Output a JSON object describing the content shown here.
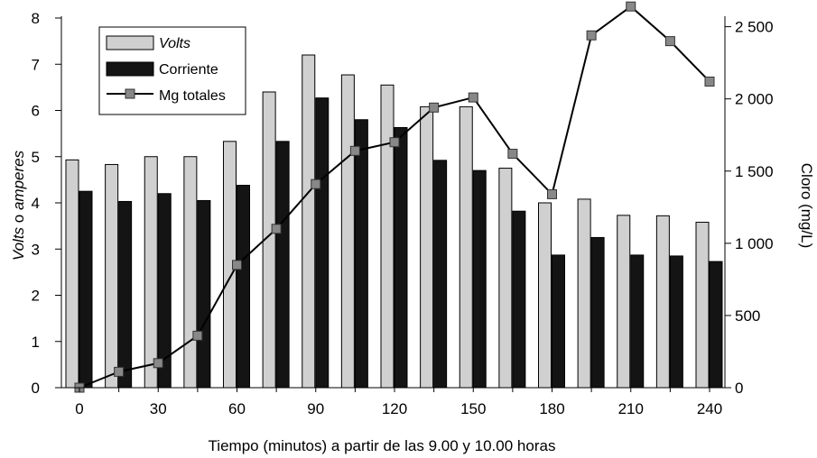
{
  "chart_data": {
    "type": "bar",
    "x": [
      0,
      15,
      30,
      45,
      60,
      75,
      90,
      105,
      120,
      135,
      150,
      165,
      180,
      195,
      210,
      225,
      240
    ],
    "series": [
      {
        "name": "Volts",
        "type": "bar",
        "axis": "left",
        "values": [
          4.93,
          4.83,
          5.0,
          5.0,
          5.33,
          6.4,
          7.2,
          6.77,
          6.55,
          6.08,
          6.08,
          4.75,
          4.0,
          4.08,
          3.73,
          3.72,
          3.58
        ]
      },
      {
        "name": "Corriente",
        "type": "bar",
        "axis": "left",
        "values": [
          4.25,
          4.03,
          4.2,
          4.05,
          4.38,
          5.33,
          6.27,
          5.8,
          5.63,
          4.92,
          4.7,
          3.82,
          2.87,
          3.25,
          2.87,
          2.85,
          2.73
        ]
      },
      {
        "name": "Mg totales",
        "type": "line",
        "axis": "right",
        "values": [
          0,
          110,
          170,
          360,
          850,
          1100,
          1410,
          1640,
          1700,
          1940,
          2010,
          1620,
          1340,
          2440,
          2640,
          2400,
          2120
        ]
      }
    ],
    "xlabel": "Tiempo (minutos) a partir de las 9.00 y 10.00 horas",
    "ylabel_parts": [
      "Volts",
      " o ",
      "amperes"
    ],
    "ylabel_right": "Cloro (mg/L)",
    "xticks": [
      "0",
      "30",
      "60",
      "90",
      "120",
      "150",
      "180",
      "210",
      "240"
    ],
    "yticks_left": [
      "0",
      "1",
      "2",
      "3",
      "4",
      "5",
      "6",
      "7",
      "8"
    ],
    "yticks_right": [
      "0",
      "500",
      "1 000",
      "1 500",
      "2 000",
      "2 500"
    ],
    "ylim_left": [
      0,
      8
    ],
    "ylim_right": [
      0,
      2560
    ],
    "legend_position": "top-left",
    "colors": {
      "volts": "#d0d0d0",
      "corriente": "#141414",
      "line": "#000000",
      "marker": "#888888"
    }
  }
}
